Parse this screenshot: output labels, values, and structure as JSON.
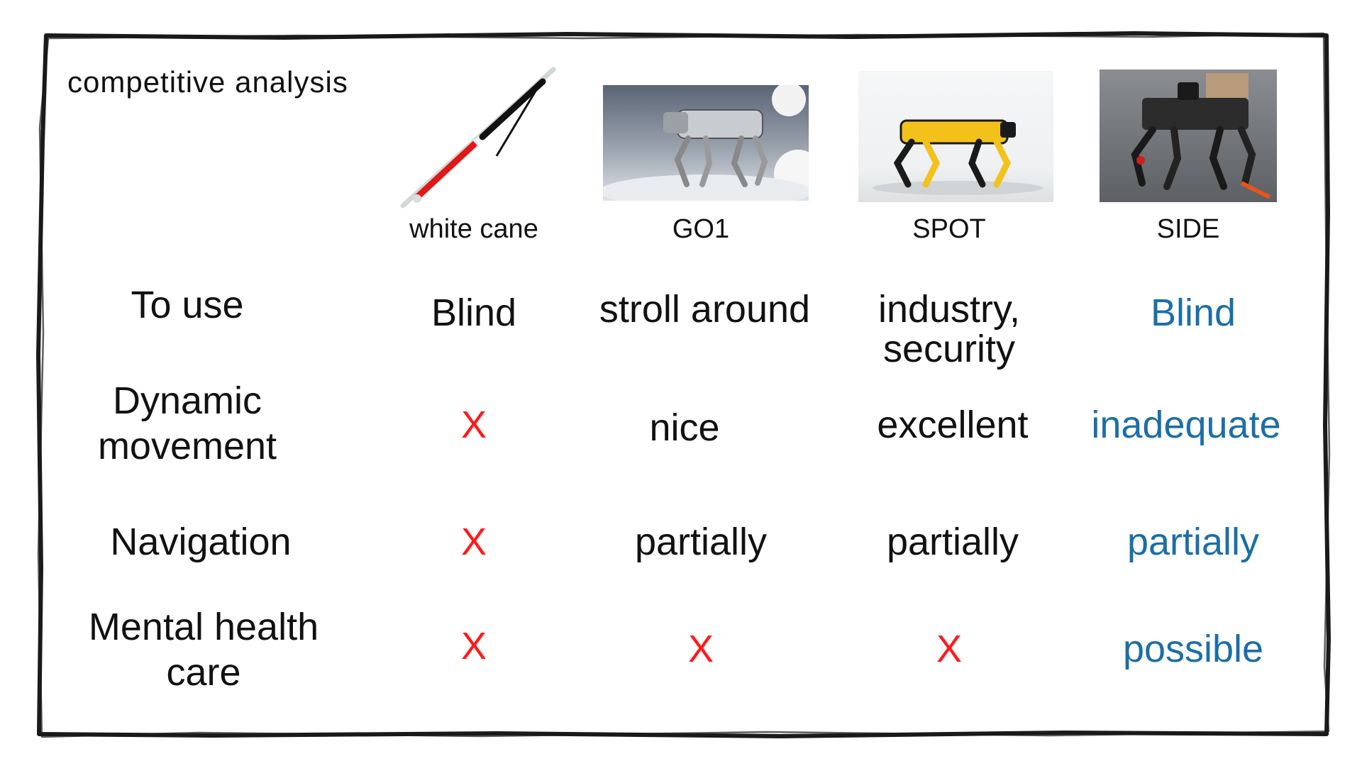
{
  "slide": {
    "title": "competitive analysis"
  },
  "colors": {
    "negative": "#ff1a1a",
    "highlight": "#1b6ea8",
    "text": "#111111",
    "spot_yellow": "#f3c21a",
    "red_tip": "#e01818"
  },
  "products": [
    {
      "name": "white cane",
      "image": "white-cane-photo"
    },
    {
      "name": "GO1",
      "image": "go1-robot-dog-photo"
    },
    {
      "name": "SPOT",
      "image": "spot-robot-dog-photo"
    },
    {
      "name": "SIDE",
      "image": "side-prototype-robot-photo"
    }
  ],
  "rows": [
    {
      "label": "To use",
      "cells": [
        "Blind",
        "stroll around",
        "industry,\nsecurity",
        "Blind"
      ]
    },
    {
      "label": "Dynamic\nmovement",
      "cells": [
        "X",
        "nice",
        "excellent",
        "inadequate"
      ]
    },
    {
      "label": "Navigation",
      "cells": [
        "X",
        "partially",
        "partially",
        "partially"
      ]
    },
    {
      "label": "Mental health\ncare",
      "cells": [
        "X",
        "X",
        "X",
        "possible"
      ]
    }
  ]
}
